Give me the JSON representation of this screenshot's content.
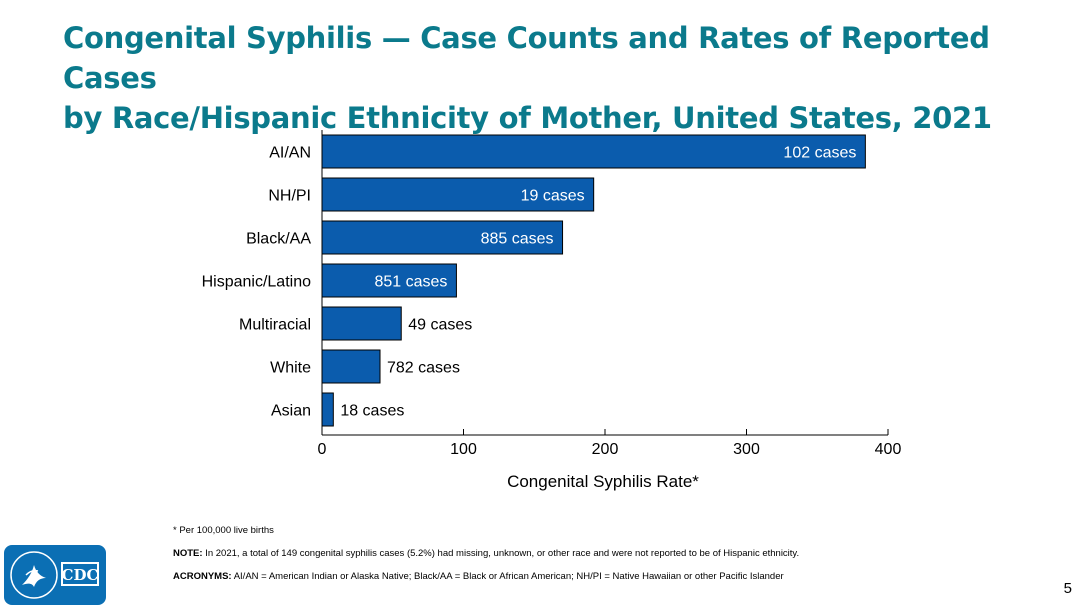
{
  "title": {
    "line1": "Congenital Syphilis — Case Counts and Rates of Reported Cases",
    "line2": "by Race/Hispanic Ethnicity of Mother, United States, 2021"
  },
  "chart_data": {
    "type": "bar",
    "orientation": "horizontal",
    "categories": [
      "AI/AN",
      "NH/PI",
      "Black/AA",
      "Hispanic/Latino",
      "Multiracial",
      "White",
      "Asian"
    ],
    "values": [
      384.0,
      192.0,
      170.0,
      95.0,
      56.0,
      41.0,
      8.0
    ],
    "data_labels": [
      "102 cases",
      "19 cases",
      "885 cases",
      "851 cases",
      "49 cases",
      "782 cases",
      "18 cases"
    ],
    "xlabel": "Congenital Syphilis Rate*",
    "xlim": [
      0,
      400
    ],
    "xticks": [
      0,
      100,
      200,
      300,
      400
    ],
    "bar_color": "#0b5cad",
    "grid": false
  },
  "footnotes": {
    "asterisk": "* Per 100,000 live births",
    "note_label": "NOTE:",
    "note_text": " In 2021, a total of 149 congenital syphilis cases (5.2%) had missing, unknown, or other race and were not reported to be of Hispanic ethnicity.",
    "acronyms_label": "ACRONYMS:",
    "acronyms_text": " AI/AN = American Indian or Alaska Native; Black/AA = Black or African American; NH/PI = Native Hawaiian or other Pacific Islander"
  },
  "logo": {
    "text": "CDC"
  },
  "page_number": "5"
}
